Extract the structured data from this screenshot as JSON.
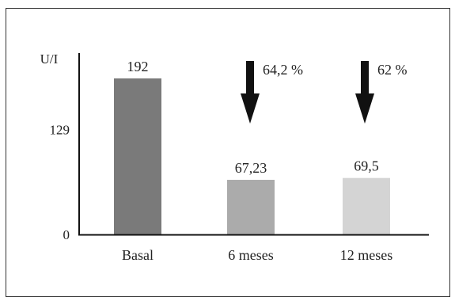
{
  "chart_data": {
    "type": "bar",
    "ylabel": "U/I",
    "ylim": [
      0,
      192
    ],
    "yticks": [
      0,
      129
    ],
    "categories": [
      "Basal",
      "6 meses",
      "12 meses"
    ],
    "values": [
      192,
      67.23,
      69.5
    ],
    "value_labels": [
      "192",
      "67,23",
      "69,5"
    ],
    "colors": [
      "#7a7a7a",
      "#ababab",
      "#d4d4d4"
    ],
    "annotations": [
      {
        "category": "6 meses",
        "icon": "down-arrow-icon",
        "text": "64,2 %"
      },
      {
        "category": "12 meses",
        "icon": "down-arrow-icon",
        "text": "62 %"
      }
    ],
    "grid": false,
    "legend": "none"
  }
}
